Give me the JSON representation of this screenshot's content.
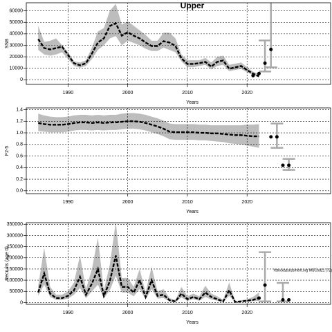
{
  "chart_data": [
    {
      "type": "line",
      "title": "Upper",
      "xlabel": "Years",
      "ylabel": "SSB",
      "x": [
        1985,
        1986,
        1987,
        1988,
        1989,
        1990,
        1991,
        1992,
        1993,
        1994,
        1995,
        1996,
        1997,
        1998,
        1999,
        2000,
        2001,
        2002,
        2003,
        2004,
        2005,
        2006,
        2007,
        2008,
        2009,
        2010,
        2011,
        2012,
        2013,
        2014,
        2015,
        2016,
        2017,
        2018,
        2019,
        2020,
        2021,
        2022
      ],
      "values": [
        35400,
        27600,
        26400,
        27600,
        28800,
        21600,
        14400,
        12600,
        14400,
        22800,
        32400,
        36000,
        46800,
        49200,
        38400,
        41400,
        38400,
        36000,
        32400,
        29400,
        29400,
        33600,
        32400,
        29400,
        18600,
        13800,
        13800,
        14400,
        15600,
        11400,
        15600,
        16800,
        9600,
        10800,
        12000,
        8400,
        5400,
        3000
      ],
      "upper": [
        47000,
        33000,
        34000,
        36000,
        30000,
        24000,
        16000,
        15000,
        17000,
        28000,
        42000,
        45000,
        60000,
        66000,
        48000,
        51000,
        47000,
        43000,
        39000,
        34000,
        34000,
        41000,
        41000,
        36000,
        22000,
        17000,
        17000,
        17000,
        19000,
        15000,
        20000,
        21000,
        13000,
        14000,
        15000,
        11000,
        7000,
        5000
      ],
      "lower": [
        26000,
        22000,
        21000,
        22000,
        24000,
        18000,
        12000,
        10500,
        12000,
        18000,
        26000,
        30000,
        36000,
        38000,
        30000,
        34000,
        32000,
        30000,
        27000,
        25000,
        25000,
        28000,
        26000,
        24000,
        16000,
        11000,
        11000,
        12000,
        13000,
        9000,
        12000,
        13000,
        7500,
        8500,
        9500,
        6500,
        4000,
        2000
      ],
      "color": "#000000",
      "band_color": "#bdbdbd",
      "points": {
        "x": [
          2021,
          2022,
          2023,
          2024
        ],
        "values": [
          3600,
          5400,
          14400,
          26400
        ]
      },
      "error_bars": {
        "x": [
          2023,
          2024
        ],
        "lower": [
          7200,
          10800
        ],
        "upper": [
          34200,
          70000
        ]
      },
      "xlim": [
        1983,
        2034
      ],
      "xticks": [
        1990,
        2000,
        2010,
        2020
      ],
      "ylim": [
        -4000,
        67000
      ],
      "yticks": [
        0,
        10000,
        20000,
        30000,
        40000,
        50000,
        60000
      ],
      "grid": true
    },
    {
      "type": "line",
      "xlabel": "Years",
      "ylabel": "F2-5",
      "x": [
        1985,
        1986,
        1987,
        1988,
        1989,
        1990,
        1991,
        1992,
        1993,
        1994,
        1995,
        1996,
        1997,
        1998,
        1999,
        2000,
        2001,
        2002,
        2003,
        2004,
        2005,
        2006,
        2007,
        2008,
        2009,
        2010,
        2011,
        2012,
        2013,
        2014,
        2015,
        2016,
        2017,
        2018,
        2019,
        2020,
        2021,
        2022
      ],
      "values": [
        1.17,
        1.15,
        1.14,
        1.14,
        1.14,
        1.15,
        1.17,
        1.18,
        1.18,
        1.17,
        1.18,
        1.17,
        1.18,
        1.18,
        1.19,
        1.2,
        1.2,
        1.19,
        1.17,
        1.14,
        1.11,
        1.07,
        1.02,
        1.01,
        1.01,
        1.01,
        1.01,
        1.0,
        1.0,
        0.99,
        0.99,
        0.98,
        0.97,
        0.96,
        0.96,
        0.95,
        0.94,
        0.94
      ],
      "upper": [
        1.33,
        1.3,
        1.28,
        1.27,
        1.27,
        1.28,
        1.3,
        1.31,
        1.31,
        1.3,
        1.31,
        1.3,
        1.31,
        1.31,
        1.33,
        1.34,
        1.34,
        1.33,
        1.31,
        1.28,
        1.25,
        1.21,
        1.16,
        1.15,
        1.15,
        1.15,
        1.15,
        1.14,
        1.14,
        1.13,
        1.13,
        1.13,
        1.13,
        1.13,
        1.13,
        1.14,
        1.14,
        1.15
      ],
      "lower": [
        1.03,
        1.02,
        1.01,
        1.01,
        1.01,
        1.02,
        1.04,
        1.05,
        1.05,
        1.04,
        1.05,
        1.04,
        1.05,
        1.05,
        1.06,
        1.07,
        1.07,
        1.06,
        1.04,
        1.01,
        0.98,
        0.94,
        0.89,
        0.88,
        0.88,
        0.88,
        0.88,
        0.87,
        0.87,
        0.86,
        0.85,
        0.84,
        0.82,
        0.81,
        0.8,
        0.78,
        0.76,
        0.74
      ],
      "color": "#000000",
      "band_color": "#bdbdbd",
      "points": {
        "x": [
          2024,
          2025,
          2026,
          2027
        ],
        "values": [
          0.93,
          0.93,
          0.44,
          0.44
        ]
      },
      "error_bars": {
        "x": [
          2025,
          2027
        ],
        "lower": [
          0.74,
          0.36
        ],
        "upper": [
          1.16,
          0.55
        ]
      },
      "xlim": [
        1983,
        2034
      ],
      "xticks": [
        1990,
        2000,
        2010,
        2020
      ],
      "ylim": [
        -0.05,
        1.43
      ],
      "yticks": [
        {
          "value": 0,
          "label": "0.0"
        },
        0.2,
        0.4,
        0.6,
        0.8,
        {
          "value": 1,
          "label": "1.0"
        },
        1.2,
        1.4
      ],
      "grid": true
    },
    {
      "type": "line",
      "xlabel": "Years",
      "ylabel": "Recruits (age 0)",
      "annotation": "#stockassessment.org WBCod21 (T2)",
      "x": [
        1985,
        1986,
        1987,
        1988,
        1989,
        1990,
        1991,
        1992,
        1993,
        1994,
        1995,
        1996,
        1997,
        1998,
        1999,
        2000,
        2001,
        2002,
        2003,
        2004,
        2005,
        2006,
        2007,
        2008,
        2009,
        2010,
        2011,
        2012,
        2013,
        2014,
        2015,
        2016,
        2017,
        2018,
        2019,
        2020,
        2021,
        2022
      ],
      "values": [
        45000,
        130000,
        40000,
        20000,
        20000,
        30000,
        55000,
        115000,
        35000,
        85000,
        150000,
        30000,
        95000,
        210000,
        70000,
        70000,
        45000,
        100000,
        25000,
        100000,
        30000,
        35000,
        10000,
        5000,
        40000,
        15000,
        25000,
        15000,
        45000,
        25000,
        15000,
        5000,
        55000,
        3000,
        5000,
        8000,
        12000,
        20000
      ],
      "upper": [
        75000,
        245000,
        70000,
        35000,
        35000,
        50000,
        90000,
        210000,
        60000,
        150000,
        290000,
        55000,
        170000,
        360000,
        110000,
        110000,
        70000,
        150000,
        45000,
        160000,
        50000,
        60000,
        20000,
        12000,
        70000,
        28000,
        40000,
        28000,
        75000,
        40000,
        28000,
        12000,
        90000,
        7000,
        10000,
        15000,
        25000,
        45000
      ],
      "lower": [
        30000,
        80000,
        25000,
        12000,
        12000,
        18000,
        35000,
        65000,
        20000,
        50000,
        80000,
        18000,
        55000,
        120000,
        45000,
        45000,
        28000,
        60000,
        14000,
        60000,
        18000,
        20000,
        5000,
        2000,
        22000,
        8000,
        15000,
        8000,
        25000,
        14000,
        8000,
        2000,
        30000,
        1000,
        2000,
        4000,
        6000,
        8000
      ],
      "color": "#000000",
      "band_color": "#bdbdbd",
      "points": {
        "x": [
          2022,
          2023,
          2026,
          2027
        ],
        "values": [
          20000,
          78000,
          12000,
          12000
        ]
      },
      "error_bars": {
        "x": [
          2023,
          2026
        ],
        "lower": [
          5000,
          5000
        ],
        "upper": [
          225000,
          88000
        ]
      },
      "xlim": [
        1983,
        2034
      ],
      "xticks": [
        1990,
        2000,
        2010,
        2020
      ],
      "ylim": [
        -8000,
        357000
      ],
      "yticks": [
        0,
        50000,
        100000,
        150000,
        200000,
        250000,
        300000,
        350000
      ],
      "grid": true
    }
  ]
}
